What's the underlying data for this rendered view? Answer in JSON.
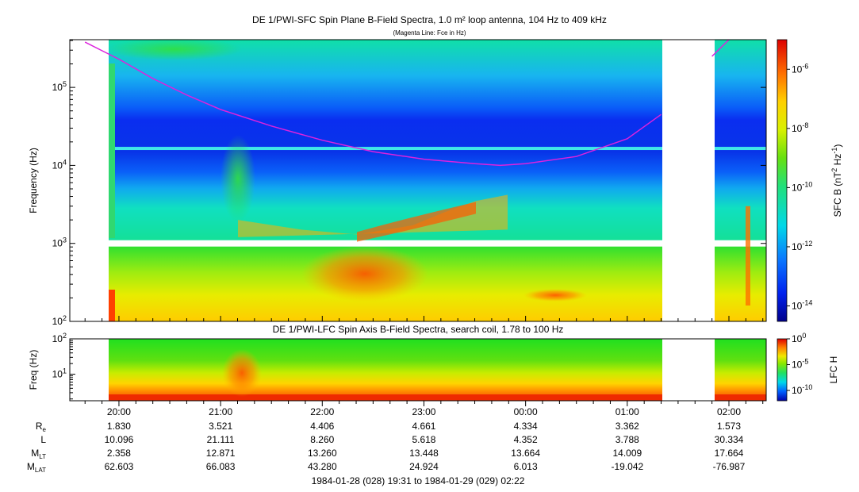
{
  "chart_data": [
    {
      "type": "heatmap",
      "title": "DE 1/PWI-SFC  Spin Plane B-Field Spectra, 1.0 m² loop antenna, 104 Hz to 409 kHz",
      "subtitle": "(Magenta Line: Fce in Hz)",
      "ylabel": "Frequency (Hz)",
      "ylim": [
        100,
        409000
      ],
      "yscale": "log",
      "y_ticks": [
        {
          "value": 100,
          "label": "10",
          "exp": "2"
        },
        {
          "value": 1000,
          "label": "10",
          "exp": "3"
        },
        {
          "value": 10000,
          "label": "10",
          "exp": "4"
        },
        {
          "value": 100000,
          "label": "10",
          "exp": "5"
        }
      ],
      "colorbar": {
        "label": "SFC B (nT",
        "label_sup1": "2",
        "label_mid": " Hz",
        "label_sup2": "-1",
        "label_end": ")",
        "scale": "log",
        "range": [
          3e-15,
          1e-05
        ],
        "ticks": [
          {
            "value": 1e-06,
            "label": "10",
            "exp": "-6"
          },
          {
            "value": 1e-08,
            "label": "10",
            "exp": "-8"
          },
          {
            "value": 1e-10,
            "label": "10",
            "exp": "-10"
          },
          {
            "value": 1e-12,
            "label": "10",
            "exp": "-12"
          },
          {
            "value": 1e-14,
            "label": "10",
            "exp": "-14"
          }
        ]
      },
      "data_gaps_utc": [
        [
          "01:20",
          "01:50"
        ]
      ],
      "fce_line": {
        "name": "Fce in Hz",
        "color": "#dd22dd",
        "x": [
          "19:40",
          "20:00",
          "20:20",
          "20:40",
          "21:00",
          "21:30",
          "22:00",
          "22:30",
          "23:00",
          "23:30",
          "23:45",
          "00:00",
          "00:30",
          "01:00",
          "01:20",
          "01:50",
          "02:00"
        ],
        "y": [
          380000,
          230000,
          130000,
          80000,
          52000,
          32000,
          21000,
          15000,
          12000,
          10500,
          10000,
          10500,
          13000,
          22000,
          45000,
          250000,
          450000
        ]
      }
    },
    {
      "type": "heatmap",
      "title": "DE 1/PWI-LFC  Spin Axis B-Field Spectra, search coil, 1.78 to 100 Hz",
      "ylabel": "Freq (Hz)",
      "ylim": [
        1.78,
        100
      ],
      "yscale": "log",
      "y_ticks": [
        {
          "value": 10,
          "label": "10",
          "exp": "1"
        },
        {
          "value": 100,
          "label": "10",
          "exp": "2"
        }
      ],
      "colorbar": {
        "label": "LFC H",
        "scale": "log",
        "range": [
          1e-12,
          1
        ],
        "ticks": [
          {
            "value": 1,
            "label": "10",
            "exp": "0"
          },
          {
            "value": 1e-05,
            "label": "10",
            "exp": "-5"
          },
          {
            "value": 1e-10,
            "label": "10",
            "exp": "-10"
          }
        ]
      }
    }
  ],
  "time_axis": {
    "ticks": [
      {
        "label": "20:00",
        "Re": "1.830",
        "L": "10.096",
        "MLT": "2.358",
        "MLAT": "62.603"
      },
      {
        "label": "21:00",
        "Re": "3.521",
        "L": "21.111",
        "MLT": "12.871",
        "MLAT": "66.083"
      },
      {
        "label": "22:00",
        "Re": "4.406",
        "L": "8.260",
        "MLT": "13.260",
        "MLAT": "43.280"
      },
      {
        "label": "23:00",
        "Re": "4.661",
        "L": "5.618",
        "MLT": "13.448",
        "MLAT": "24.924"
      },
      {
        "label": "00:00",
        "Re": "4.334",
        "L": "4.352",
        "MLT": "13.664",
        "MLAT": "6.013"
      },
      {
        "label": "01:00",
        "Re": "3.362",
        "L": "3.788",
        "MLT": "14.009",
        "MLAT": "-19.042"
      },
      {
        "label": "02:00",
        "Re": "1.573",
        "L": "30.334",
        "MLT": "17.664",
        "MLAT": "-76.987"
      }
    ],
    "row_labels": [
      {
        "key": "Re",
        "main": "R",
        "sub": "e"
      },
      {
        "key": "L",
        "main": "L",
        "sub": ""
      },
      {
        "key": "MLT",
        "main": "M",
        "sub": "LT"
      },
      {
        "key": "MLAT",
        "main": "M",
        "sub": "LAT"
      }
    ],
    "range_label": "1984-01-28 (028) 19:31 to 1984-01-29 (029) 02:22"
  }
}
